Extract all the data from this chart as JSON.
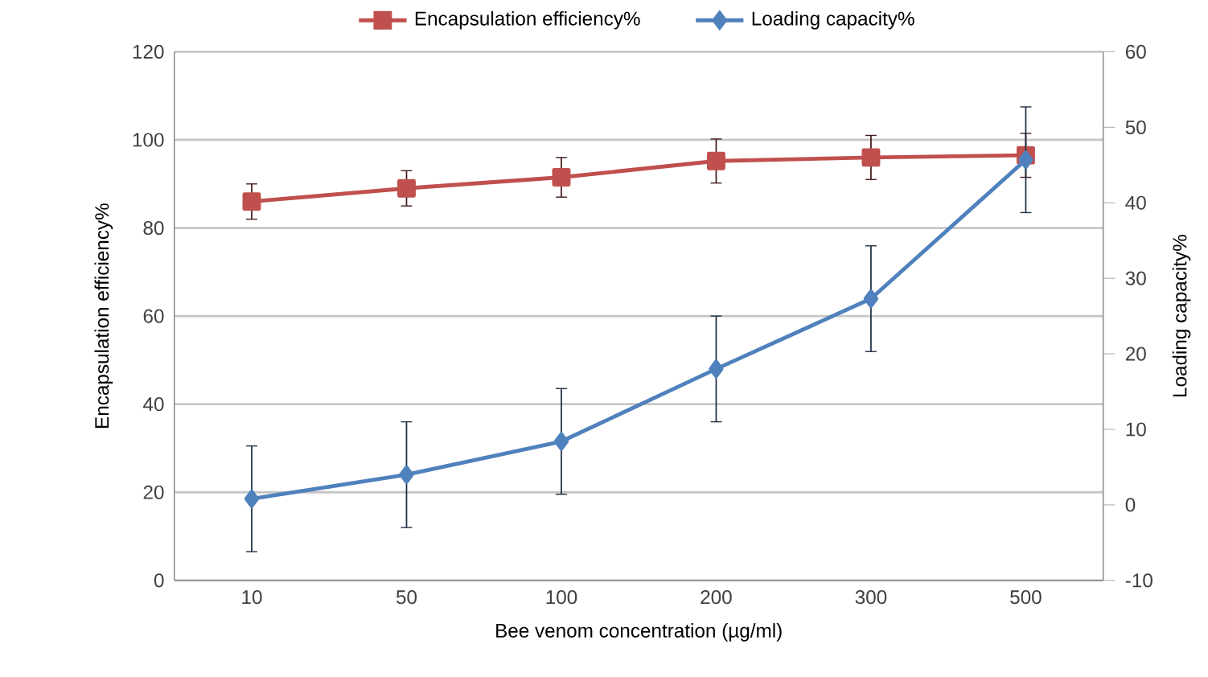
{
  "chart_data": {
    "type": "line",
    "xlabel": "Bee venom concentration (µg/ml)",
    "ylabel": "Encapsulation efficiency%",
    "y2label": "Loading capacity%",
    "categories": [
      "10",
      "50",
      "100",
      "200",
      "300",
      "500"
    ],
    "series": [
      {
        "name": "Encapsulation efficiency%",
        "color": "#c0504d",
        "marker": "square",
        "values": [
          86,
          89,
          91.5,
          95.2,
          96,
          96.5
        ],
        "errors": [
          4,
          4,
          4.5,
          5,
          5,
          5
        ]
      },
      {
        "name": "Loading capacity%",
        "color": "#4f81bd",
        "marker": "diamond",
        "axis": "y2",
        "values": [
          0.8,
          4,
          8.4,
          18,
          27.3,
          45.7
        ],
        "errors": [
          7,
          7,
          7,
          7,
          7,
          7
        ]
      }
    ],
    "ylim": [
      0,
      120
    ],
    "yticks": [
      0,
      20,
      40,
      60,
      80,
      100,
      120
    ],
    "y2lim": [
      -10,
      60
    ],
    "y2ticks": [
      -10,
      0,
      10,
      20,
      30,
      40,
      50,
      60
    ],
    "grid": "y",
    "legend": "top"
  }
}
